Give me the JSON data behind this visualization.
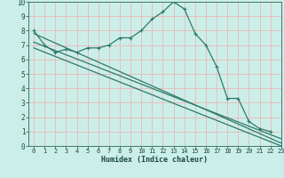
{
  "xlabel": "Humidex (Indice chaleur)",
  "bg_color": "#cceee8",
  "grid_color": "#e8b8b8",
  "line_color": "#2d7a6a",
  "xlim": [
    -0.5,
    23
  ],
  "ylim": [
    0,
    10
  ],
  "xticks": [
    0,
    1,
    2,
    3,
    4,
    5,
    6,
    7,
    8,
    9,
    10,
    11,
    12,
    13,
    14,
    15,
    16,
    17,
    18,
    19,
    20,
    21,
    22,
    23
  ],
  "yticks": [
    0,
    1,
    2,
    3,
    4,
    5,
    6,
    7,
    8,
    9,
    10
  ],
  "line1_x": [
    0,
    1,
    2,
    3,
    4,
    5,
    6,
    7,
    8,
    9,
    10,
    11,
    12,
    13,
    14,
    15,
    16,
    17,
    18,
    19,
    20,
    21,
    22
  ],
  "line1_y": [
    8.0,
    7.0,
    6.5,
    6.7,
    6.5,
    6.8,
    6.8,
    7.0,
    7.5,
    7.5,
    8.0,
    8.8,
    9.3,
    10.0,
    9.5,
    7.8,
    7.0,
    5.5,
    3.3,
    3.3,
    1.7,
    1.2,
    1.0
  ],
  "line2_x": [
    0,
    23
  ],
  "line2_y": [
    7.8,
    0.2
  ],
  "line3_x": [
    0,
    23
  ],
  "line3_y": [
    7.2,
    0.5
  ],
  "line4_x": [
    0,
    23
  ],
  "line4_y": [
    6.8,
    0.0
  ]
}
